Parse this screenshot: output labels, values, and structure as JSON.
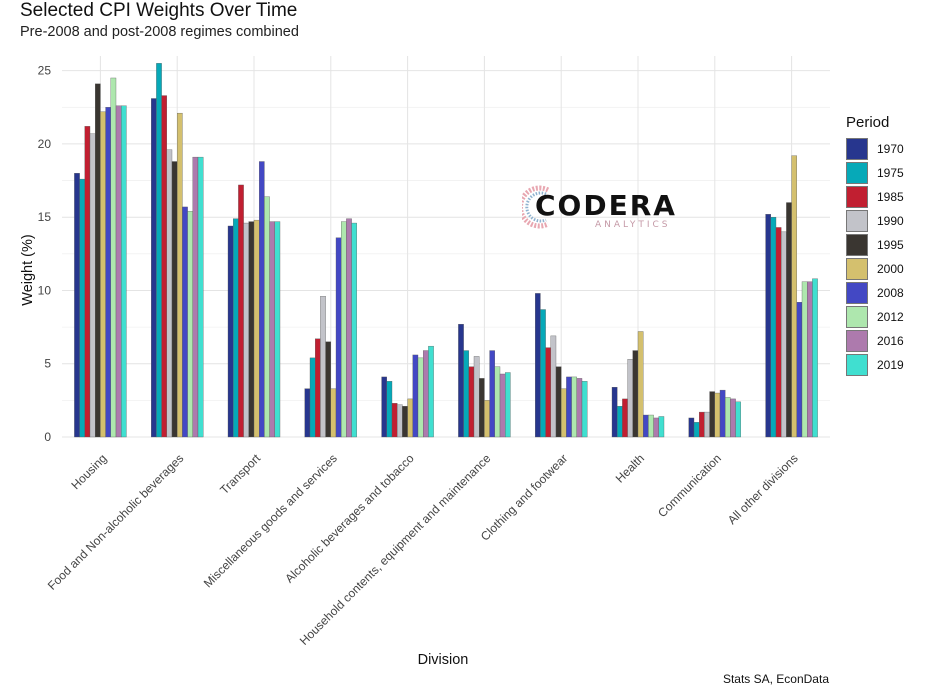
{
  "header": {
    "title": "Selected CPI Weights Over Time",
    "subtitle": "Pre-2008 and post-2008 regimes combined"
  },
  "caption": "Stats SA, EconData",
  "watermark": {
    "name": "CODERA",
    "tagline": "ANALYTICS"
  },
  "legend": {
    "title": "Period",
    "placement": "right"
  },
  "chart_data": {
    "type": "bar",
    "title": "Selected CPI Weights Over Time",
    "subtitle": "Pre-2008 and post-2008 regimes combined",
    "xlabel": "Division",
    "ylabel": "Weight (%)",
    "ylim": [
      0,
      26
    ],
    "yticks": [
      0,
      5,
      10,
      15,
      20,
      25
    ],
    "grid": true,
    "categories": [
      "Housing",
      "Food and Non-alcoholic beverages",
      "Transport",
      "Miscellaneous goods and services",
      "Alcoholic beverages and tobacco",
      "Household contents, equipment and maintenance",
      "Clothing and footwear",
      "Health",
      "Communication",
      "All other divisions"
    ],
    "series": [
      {
        "name": "1970",
        "color": "#27368e",
        "values": [
          18.0,
          23.1,
          14.4,
          3.3,
          4.1,
          7.7,
          9.8,
          3.4,
          1.3,
          15.2
        ]
      },
      {
        "name": "1975",
        "color": "#06a9b8",
        "values": [
          17.6,
          25.5,
          14.9,
          5.4,
          3.8,
          5.9,
          8.7,
          2.1,
          1.0,
          15.0
        ]
      },
      {
        "name": "1985",
        "color": "#c11f31",
        "values": [
          21.2,
          23.3,
          17.2,
          6.7,
          2.3,
          4.8,
          6.1,
          2.6,
          1.7,
          14.3
        ]
      },
      {
        "name": "1990",
        "color": "#c2c3c9",
        "values": [
          20.7,
          19.6,
          14.6,
          9.6,
          2.2,
          5.5,
          6.9,
          5.3,
          1.7,
          14.0
        ]
      },
      {
        "name": "1995",
        "color": "#3a3631",
        "values": [
          24.1,
          18.8,
          14.7,
          6.5,
          2.1,
          4.0,
          4.8,
          5.9,
          3.1,
          16.0
        ]
      },
      {
        "name": "2000",
        "color": "#d4c06e",
        "values": [
          22.2,
          22.1,
          14.8,
          3.3,
          2.6,
          2.5,
          3.3,
          7.2,
          3.0,
          19.2
        ]
      },
      {
        "name": "2008",
        "color": "#4348c4",
        "values": [
          22.5,
          15.7,
          18.8,
          13.6,
          5.6,
          5.9,
          4.1,
          1.5,
          3.2,
          9.2
        ]
      },
      {
        "name": "2012",
        "color": "#aee7ae",
        "values": [
          24.5,
          15.4,
          16.4,
          14.7,
          5.4,
          4.8,
          4.1,
          1.5,
          2.7,
          10.6
        ]
      },
      {
        "name": "2016",
        "color": "#ad7aad",
        "values": [
          22.6,
          19.1,
          14.7,
          14.9,
          5.9,
          4.3,
          4.0,
          1.3,
          2.6,
          10.6
        ]
      },
      {
        "name": "2019",
        "color": "#40dfd0",
        "values": [
          22.6,
          19.1,
          14.7,
          14.6,
          6.2,
          4.4,
          3.8,
          1.4,
          2.4,
          10.8
        ]
      }
    ]
  }
}
